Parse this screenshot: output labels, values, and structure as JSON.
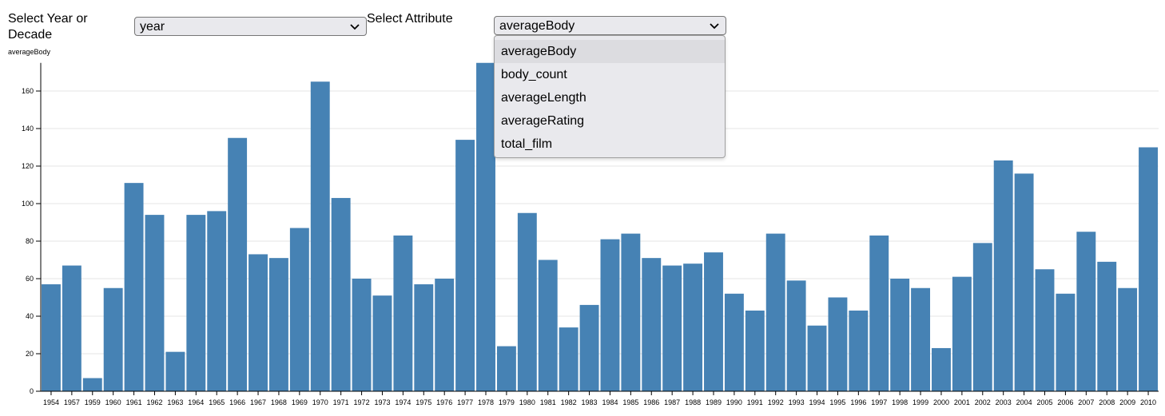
{
  "controls": {
    "year_label": "Select Year or Decade",
    "year_value": "year",
    "attribute_label": "Select Attribute",
    "attribute_value": "averageBody",
    "attribute_options": [
      "averageBody",
      "body_count",
      "averageLength",
      "averageRating",
      "total_film"
    ]
  },
  "chart_data": {
    "type": "bar",
    "y_label": "averageBody",
    "categories": [
      "1954",
      "1957",
      "1959",
      "1960",
      "1961",
      "1962",
      "1963",
      "1964",
      "1965",
      "1966",
      "1967",
      "1968",
      "1969",
      "1970",
      "1971",
      "1972",
      "1973",
      "1974",
      "1975",
      "1976",
      "1977",
      "1978",
      "1979",
      "1980",
      "1981",
      "1982",
      "1983",
      "1984",
      "1985",
      "1986",
      "1987",
      "1988",
      "1989",
      "1990",
      "1991",
      "1992",
      "1993",
      "1994",
      "1995",
      "1996",
      "1997",
      "1998",
      "1999",
      "2000",
      "2001",
      "2002",
      "2003",
      "2004",
      "2005",
      "2006",
      "2007",
      "2008",
      "2009",
      "2010"
    ],
    "values": [
      57,
      67,
      7,
      55,
      111,
      94,
      21,
      94,
      96,
      135,
      73,
      71,
      87,
      165,
      103,
      60,
      51,
      83,
      57,
      60,
      134,
      175,
      24,
      95,
      70,
      34,
      46,
      81,
      84,
      71,
      67,
      68,
      74,
      52,
      43,
      84,
      59,
      35,
      50,
      43,
      83,
      60,
      55,
      23,
      61,
      79,
      123,
      116,
      65,
      52,
      85,
      69,
      55,
      130
    ],
    "color": "#4682b4",
    "ylim": [
      0,
      175
    ],
    "yticks": [
      0,
      20,
      40,
      60,
      80,
      100,
      120,
      140,
      160
    ],
    "grid": true
  }
}
